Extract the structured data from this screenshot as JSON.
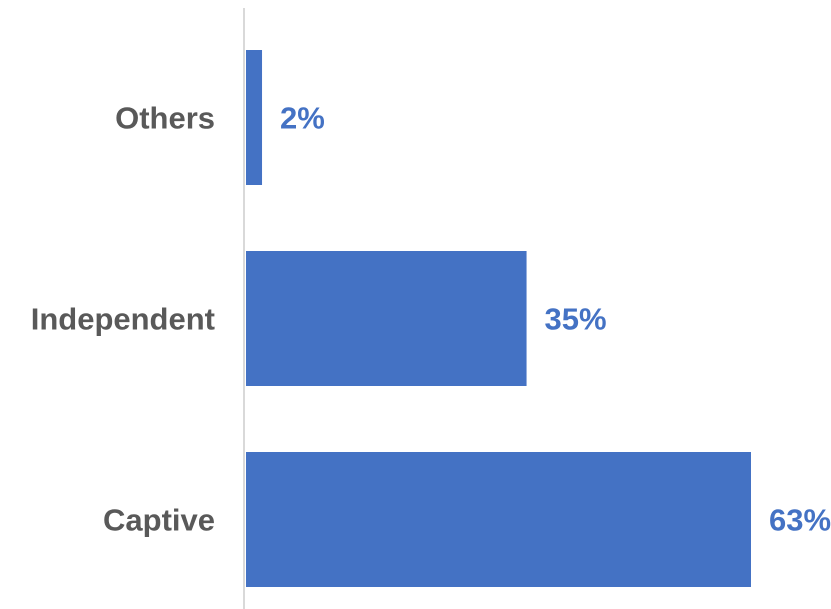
{
  "chart_data": {
    "type": "bar",
    "orientation": "horizontal",
    "categories": [
      "Others",
      "Independent",
      "Captive"
    ],
    "values": [
      2,
      35,
      63
    ],
    "value_labels": [
      "2%",
      "35%",
      "63%"
    ],
    "unit": "%",
    "title": "",
    "xlabel": "",
    "ylabel": "",
    "xlim": [
      0,
      63
    ],
    "grid": false,
    "legend": "none",
    "bar_color": "#4472C4",
    "value_label_color": "#4472C4",
    "category_label_color": "#595959",
    "axis_color": "#D9D9D9"
  }
}
